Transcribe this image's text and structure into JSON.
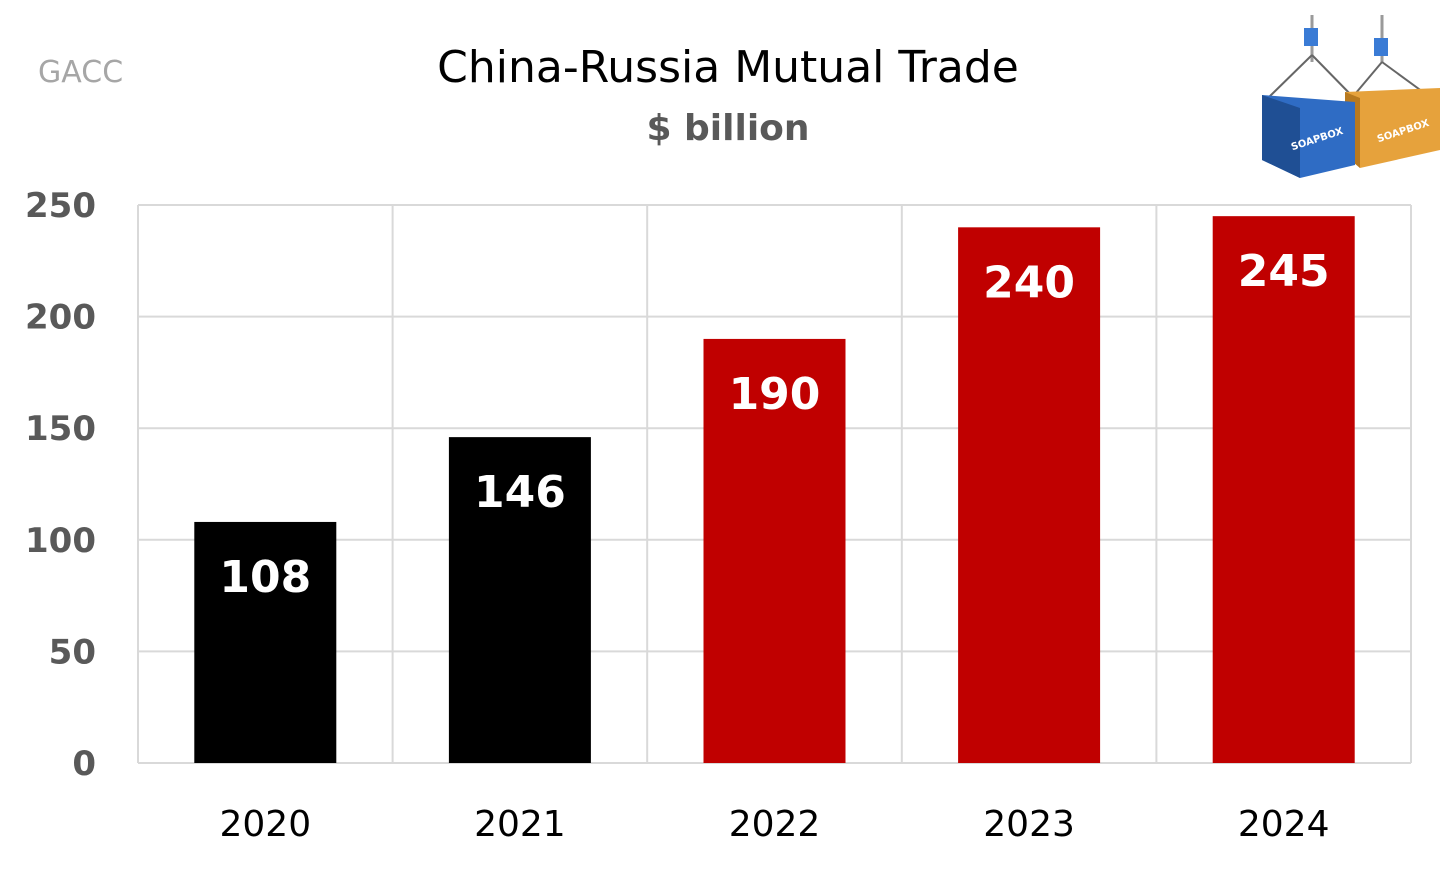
{
  "source_label": "GACC",
  "logo_text": "SOAPBOX",
  "chart_data": {
    "type": "bar",
    "title": "China-Russia Mutual Trade",
    "subtitle": "$ billion",
    "categories": [
      "2020",
      "2021",
      "2022",
      "2023",
      "2024"
    ],
    "values": [
      108,
      146,
      190,
      240,
      245
    ],
    "data_labels": [
      "108",
      "146",
      "190",
      "240",
      "245"
    ],
    "bar_colors": [
      "#000000",
      "#000000",
      "#c00000",
      "#c00000",
      "#c00000"
    ],
    "ylim": [
      0,
      250
    ],
    "yticks": [
      0,
      50,
      100,
      150,
      200,
      250
    ],
    "grid": true,
    "legend": "none"
  }
}
